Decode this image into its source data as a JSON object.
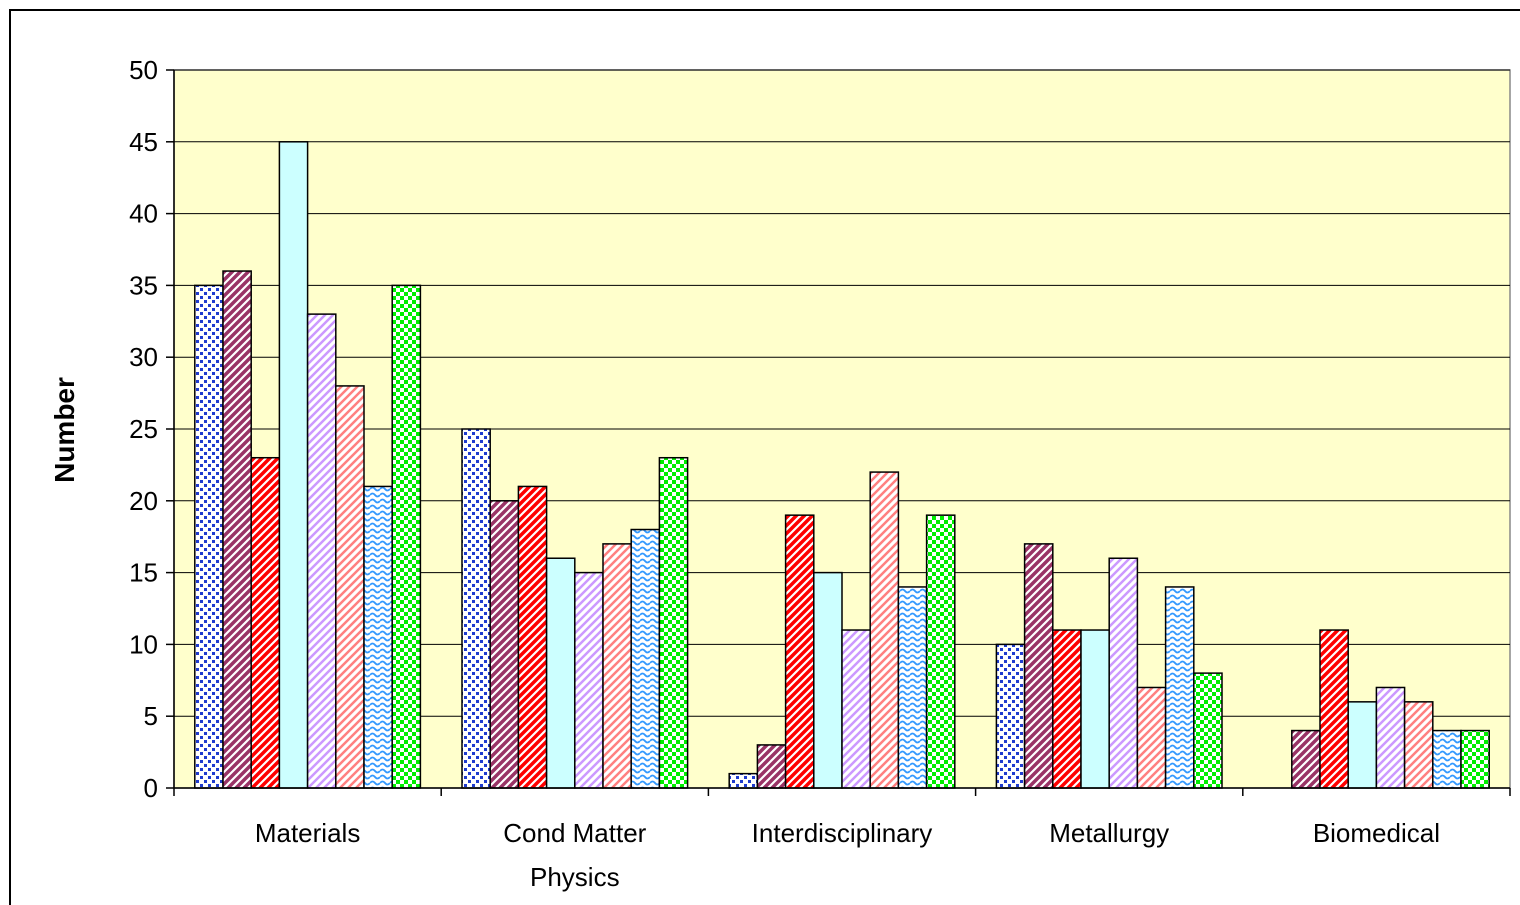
{
  "chart_data": {
    "type": "bar",
    "title": "",
    "xlabel": "",
    "ylabel": "Number",
    "ylim": [
      0,
      50
    ],
    "yticks": [
      0,
      5,
      10,
      15,
      20,
      25,
      30,
      35,
      40,
      45,
      50
    ],
    "grid": true,
    "legend": "none",
    "plot_background": "#ffffcc",
    "categories": [
      [
        "Materials"
      ],
      [
        "Cond Matter",
        "Physics"
      ],
      [
        "Interdisciplinary"
      ],
      [
        "Metallurgy"
      ],
      [
        "Biomedical"
      ]
    ],
    "series": [
      {
        "pattern": "dots",
        "color": "#1f3ccf",
        "values": [
          35,
          25,
          1,
          10,
          0
        ]
      },
      {
        "pattern": "diagonal-dark",
        "color": "#993366",
        "values": [
          36,
          20,
          3,
          17,
          4
        ]
      },
      {
        "pattern": "diagonal-red",
        "color": "#ff0000",
        "values": [
          23,
          21,
          19,
          11,
          11
        ]
      },
      {
        "pattern": "solid",
        "color": "#ccffff",
        "values": [
          45,
          16,
          15,
          11,
          6
        ]
      },
      {
        "pattern": "diagonal-light",
        "color": "#cc99ff",
        "values": [
          33,
          15,
          11,
          16,
          7
        ]
      },
      {
        "pattern": "diagonal-light",
        "color": "#ff8080",
        "values": [
          28,
          17,
          22,
          7,
          6
        ]
      },
      {
        "pattern": "wave",
        "color": "#3399ff",
        "values": [
          21,
          18,
          14,
          14,
          4
        ]
      },
      {
        "pattern": "checker",
        "color": "#00ee00",
        "values": [
          35,
          23,
          19,
          8,
          4
        ]
      }
    ]
  }
}
